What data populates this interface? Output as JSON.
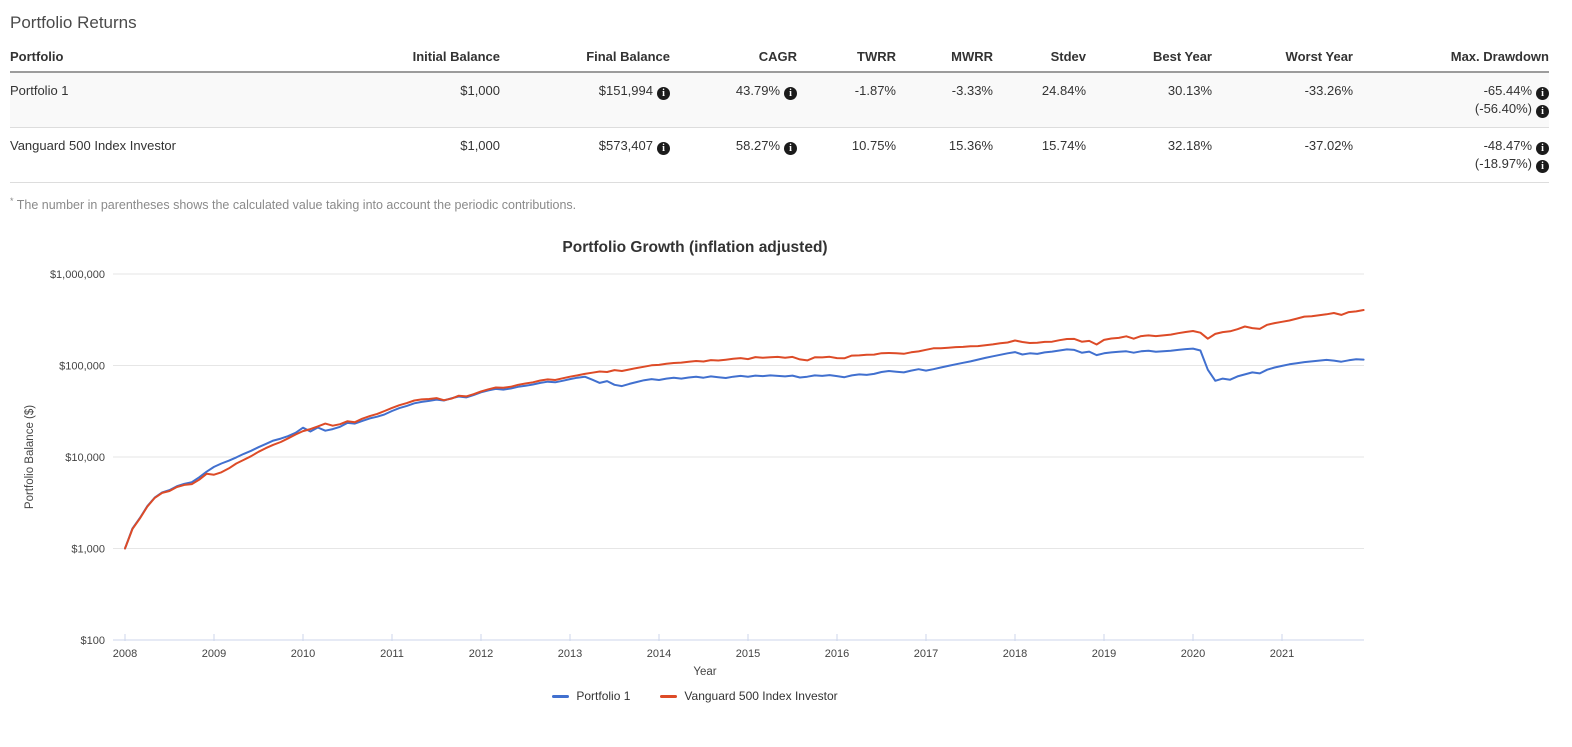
{
  "page": {
    "title": "Portfolio Returns"
  },
  "icons": {
    "info": "i"
  },
  "table": {
    "columns": [
      "Portfolio",
      "Initial Balance",
      "Final Balance",
      "CAGR",
      "TWRR",
      "MWRR",
      "Stdev",
      "Best Year",
      "Worst Year",
      "Max. Drawdown"
    ],
    "rows": [
      {
        "portfolio": "Portfolio 1",
        "initial_balance": "$1,000",
        "final_balance": "$151,994",
        "cagr": "43.79%",
        "twrr": "-1.87%",
        "mwrr": "-3.33%",
        "stdev": "24.84%",
        "best_year": "30.13%",
        "worst_year": "-33.26%",
        "max_drawdown": "-65.44%",
        "max_drawdown_with_contributions": "(-56.40%)"
      },
      {
        "portfolio": "Vanguard 500 Index Investor",
        "initial_balance": "$1,000",
        "final_balance": "$573,407",
        "cagr": "58.27%",
        "twrr": "10.75%",
        "mwrr": "15.36%",
        "stdev": "15.74%",
        "best_year": "32.18%",
        "worst_year": "-37.02%",
        "max_drawdown": "-48.47%",
        "max_drawdown_with_contributions": "(-18.97%)"
      }
    ],
    "footnote_marker": "*",
    "footnote": "The number in parentheses shows the calculated value taking into account the periodic contributions."
  },
  "chart_data": {
    "type": "line",
    "title": "Portfolio Growth (inflation adjusted)",
    "xlabel": "Year",
    "ylabel": "Portfolio Balance ($)",
    "y_scale": "log",
    "ylim": [
      100,
      1000000
    ],
    "y_ticks": [
      {
        "value": 1000000,
        "label": "$1,000,000"
      },
      {
        "value": 100000,
        "label": "$100,000"
      },
      {
        "value": 10000,
        "label": "$10,000"
      },
      {
        "value": 1000,
        "label": "$1,000"
      },
      {
        "value": 100,
        "label": "$100"
      }
    ],
    "x_ticks": [
      2008,
      2009,
      2010,
      2011,
      2012,
      2013,
      2014,
      2015,
      2016,
      2017,
      2018,
      2019,
      2020,
      2021
    ],
    "x_start_year": 2008,
    "x_interval": "monthly",
    "grid": "horizontal-major",
    "legend_position": "bottom",
    "axis_color": "#ccd6eb",
    "grid_color": "#e6e6e6",
    "label_color": "#444444",
    "series": [
      {
        "name": "Portfolio 1",
        "color": "#4170cf",
        "values": [
          1000,
          1650,
          2150,
          2900,
          3600,
          4100,
          4350,
          4800,
          5100,
          5300,
          6000,
          6900,
          7800,
          8500,
          9100,
          9900,
          10800,
          11700,
          12800,
          13900,
          15100,
          15900,
          16900,
          18400,
          20900,
          19000,
          21000,
          19400,
          20200,
          21400,
          23600,
          23200,
          24800,
          26400,
          27600,
          29200,
          31800,
          34200,
          36200,
          38600,
          40000,
          41000,
          42400,
          41400,
          43800,
          45800,
          44800,
          47600,
          51000,
          53500,
          55500,
          54500,
          56000,
          58500,
          60000,
          62000,
          64500,
          66500,
          65500,
          68000,
          71000,
          73500,
          75500,
          70000,
          64500,
          67500,
          61500,
          59500,
          63000,
          66000,
          69000,
          71000,
          69500,
          72000,
          73500,
          72000,
          74000,
          75500,
          73500,
          76000,
          74500,
          73000,
          75500,
          77000,
          75500,
          77500,
          76500,
          78000,
          77000,
          76000,
          77500,
          74000,
          75500,
          78000,
          77000,
          78500,
          76500,
          74500,
          78000,
          80000,
          79000,
          81000,
          85000,
          87000,
          85500,
          84000,
          88000,
          91000,
          88000,
          91000,
          95000,
          99000,
          103000,
          107000,
          111000,
          116000,
          121000,
          126000,
          131000,
          136000,
          140000,
          132000,
          136000,
          134000,
          139000,
          142000,
          146000,
          150000,
          148000,
          138000,
          142000,
          130000,
          136000,
          139000,
          141000,
          143000,
          138000,
          143000,
          145000,
          141000,
          143000,
          145000,
          148000,
          151000,
          153000,
          146000,
          90000,
          68000,
          72000,
          70000,
          76000,
          80000,
          84000,
          82000,
          90000,
          95000,
          99000,
          103000,
          106000,
          109000,
          111000,
          113000,
          115000,
          113000,
          110000,
          114000,
          117000,
          116000
        ]
      },
      {
        "name": "Vanguard 500 Index Investor",
        "color": "#dd4b27",
        "values": [
          1000,
          1630,
          2120,
          2870,
          3570,
          4050,
          4250,
          4700,
          4950,
          5050,
          5650,
          6550,
          6400,
          6800,
          7500,
          8500,
          9300,
          10200,
          11400,
          12500,
          13600,
          14600,
          16000,
          17600,
          19200,
          20200,
          21600,
          23200,
          22000,
          22800,
          24600,
          24000,
          26200,
          28000,
          29600,
          31800,
          34400,
          36800,
          38800,
          41400,
          42600,
          43000,
          44000,
          41800,
          43400,
          46800,
          46000,
          48600,
          52000,
          55000,
          57500,
          57000,
          58500,
          61500,
          63500,
          65500,
          68500,
          70500,
          69500,
          72500,
          75500,
          78000,
          81000,
          83500,
          86000,
          85000,
          89000,
          87000,
          90500,
          94000,
          97000,
          100500,
          101500,
          104500,
          106500,
          107500,
          110000,
          112000,
          110500,
          114500,
          113300,
          115800,
          118500,
          120500,
          117500,
          123500,
          121700,
          123000,
          124300,
          121700,
          124300,
          116700,
          113700,
          123000,
          122500,
          124500,
          120500,
          120000,
          128300,
          129100,
          131200,
          131700,
          136400,
          136900,
          136400,
          134300,
          139500,
          142500,
          148500,
          154200,
          154700,
          156400,
          158700,
          159600,
          162500,
          163000,
          166100,
          170100,
          175000,
          178500,
          187500,
          180700,
          176000,
          176900,
          181200,
          182100,
          189100,
          194800,
          195300,
          182100,
          185900,
          169700,
          190500,
          197500,
          200500,
          208500,
          196500,
          209500,
          213500,
          209500,
          213500,
          217500,
          225500,
          232500,
          238500,
          228500,
          196500,
          221500,
          231500,
          236500,
          249500,
          266500,
          256500,
          251500,
          278500,
          290500,
          300500,
          310500,
          325500,
          342500,
          345500,
          353500,
          362500,
          374500,
          357500,
          383500,
          390500,
          404500
        ]
      }
    ]
  }
}
